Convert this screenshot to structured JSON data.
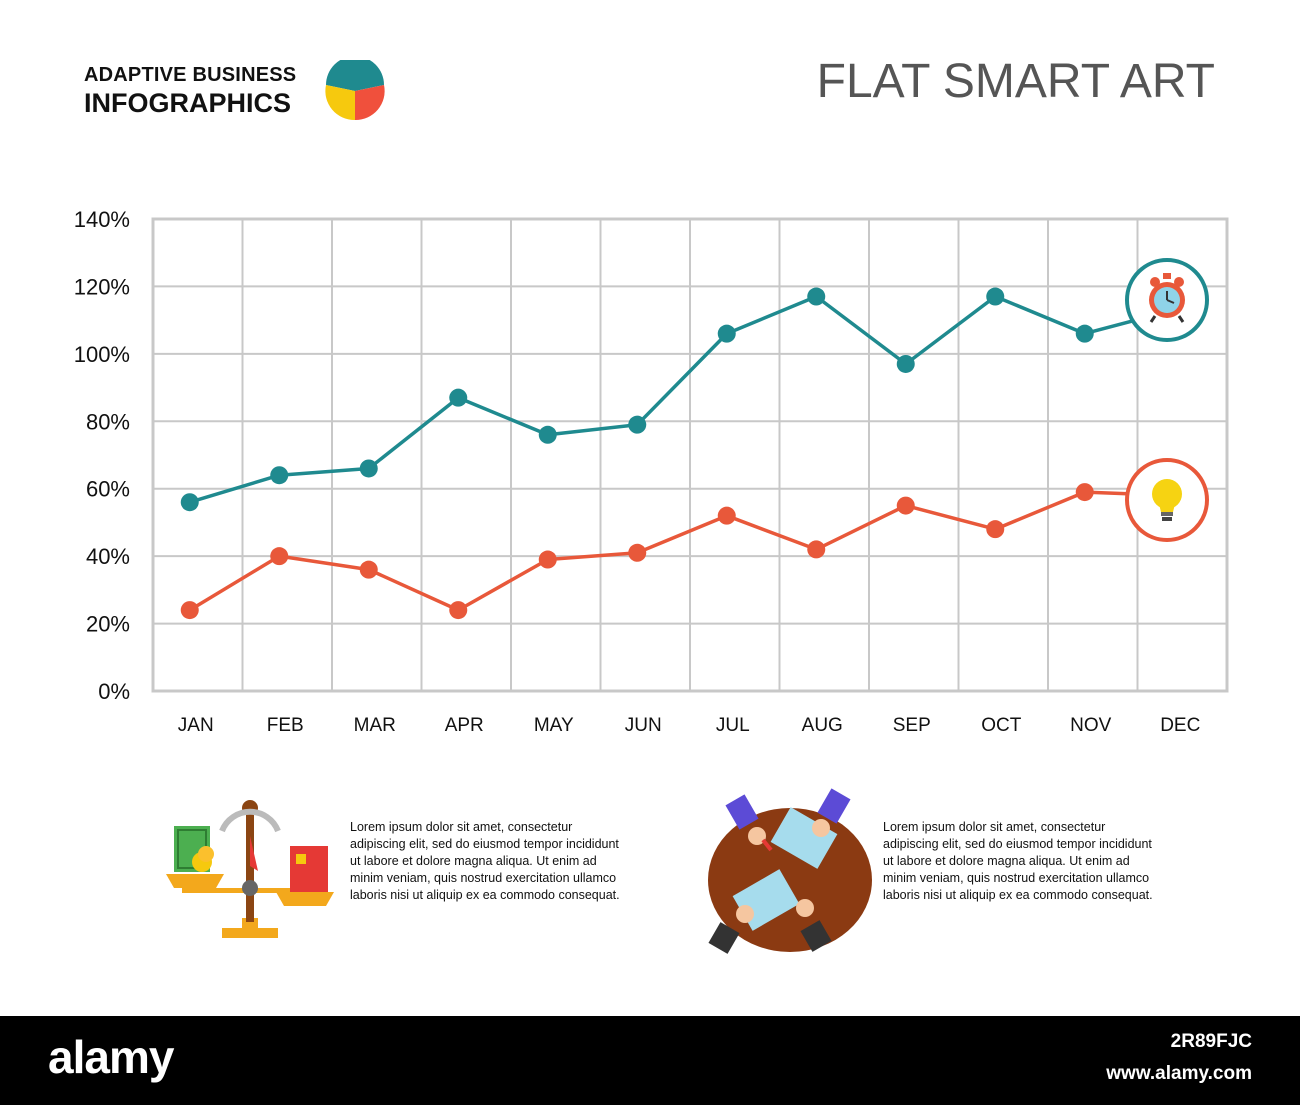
{
  "brand": {
    "line1": "ADAPTIVE BUSINESS",
    "line2": "INFOGRAPHICS",
    "logo_colors": [
      "#1f8a8f",
      "#f0503c",
      "#f6c90e"
    ]
  },
  "title": "FLAT SMART ART",
  "chart_data": {
    "type": "line",
    "categories": [
      "JAN",
      "FEB",
      "MAR",
      "APR",
      "MAY",
      "JUN",
      "JUL",
      "AUG",
      "SEP",
      "OCT",
      "NOV",
      "DEC"
    ],
    "y_ticks": [
      "0%",
      "20%",
      "40%",
      "60%",
      "80%",
      "100%",
      "120%",
      "140%"
    ],
    "ylim": [
      0,
      140
    ],
    "grid": true,
    "series": [
      {
        "color": "#1f8a8f",
        "icon": "alarm-clock-icon",
        "values": [
          56,
          64,
          66,
          87,
          76,
          79,
          106,
          117,
          97,
          117,
          106,
          113
        ]
      },
      {
        "color": "#e8583a",
        "icon": "light-bulb-icon",
        "values": [
          24,
          40,
          36,
          24,
          39,
          41,
          52,
          42,
          55,
          48,
          59,
          58
        ]
      }
    ]
  },
  "text_blocks": [
    {
      "icon": "balance-scale-icon",
      "text": "Lorem ipsum dolor sit amet, consectetur adipiscing elit, sed do eiusmod tempor incididunt ut labore et dolore magna aliqua. Ut enim ad minim veniam, quis nostrud exercitation ullamco laboris nisi ut aliquip ex ea commodo consequat."
    },
    {
      "icon": "business-meeting-icon",
      "text": "Lorem ipsum dolor sit amet, consectetur adipiscing elit, sed do eiusmod tempor incididunt ut labore et dolore magna aliqua. Ut enim ad minim veniam, quis nostrud exercitation ullamco laboris nisi ut aliquip ex ea commodo consequat."
    }
  ],
  "footer": {
    "logo": "alamy",
    "image_id": "2R89FJC",
    "url": "www.alamy.com"
  }
}
